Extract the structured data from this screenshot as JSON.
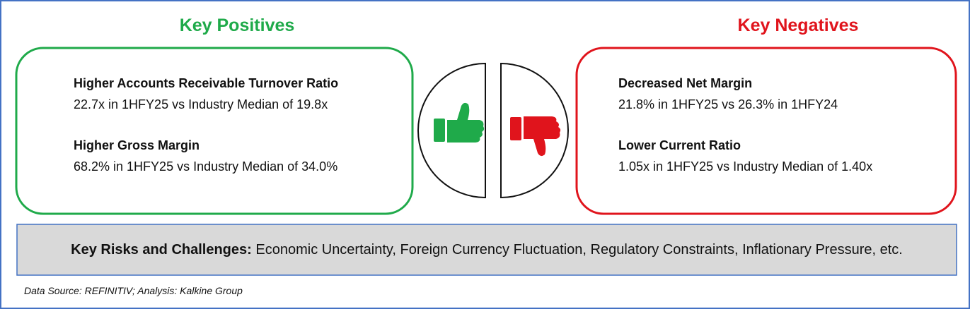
{
  "positives": {
    "title": "Key Positives",
    "items": [
      {
        "heading": "Higher Accounts Receivable Turnover Ratio",
        "detail": "22.7x in 1HFY25 vs Industry Median of 19.8x"
      },
      {
        "heading": "Higher Gross Margin",
        "detail": "68.2% in 1HFY25 vs Industry Median of 34.0%"
      }
    ]
  },
  "negatives": {
    "title": "Key Negatives",
    "items": [
      {
        "heading": "Decreased Net Margin",
        "detail": "21.8% in 1HFY25 vs 26.3% in 1HFY24"
      },
      {
        "heading": "Lower Current Ratio",
        "detail": "1.05x in 1HFY25 vs Industry Median of 1.40x"
      }
    ]
  },
  "risks": {
    "label": "Key Risks and Challenges:",
    "text": "Economic Uncertainty, Foreign Currency Fluctuation, Regulatory Constraints, Inflationary Pressure, etc."
  },
  "source": "Data Source: REFINITIV; Analysis: Kalkine Group"
}
